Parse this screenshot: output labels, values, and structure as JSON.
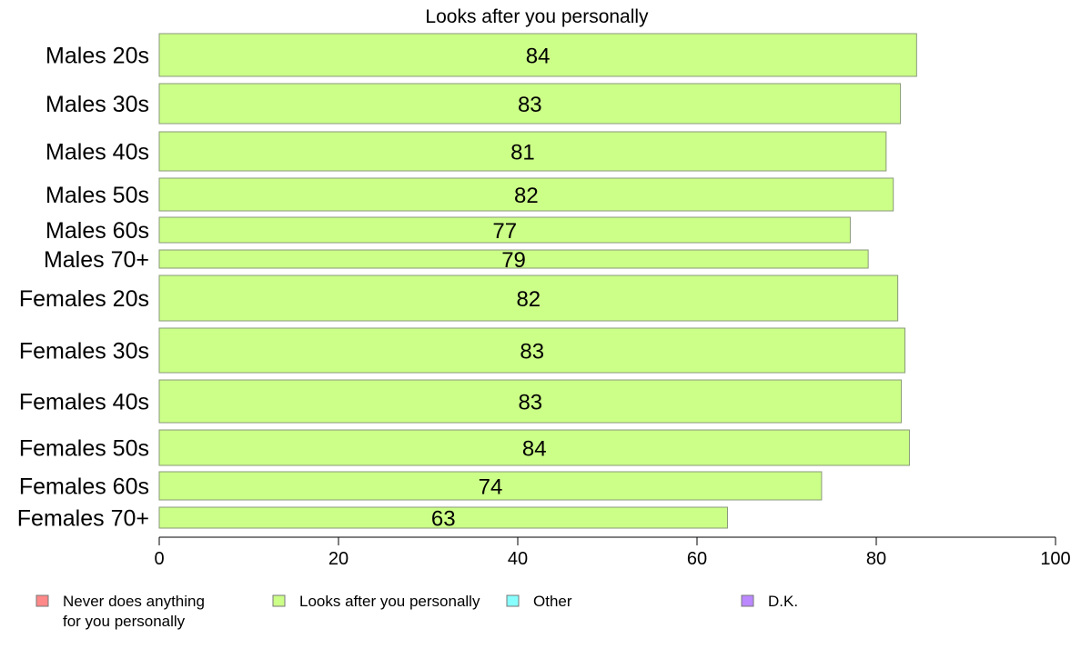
{
  "chart_data": {
    "type": "bar",
    "orientation": "horizontal",
    "title": "Looks after you personally",
    "categories": [
      "Males 20s",
      "Males 30s",
      "Males 40s",
      "Males 50s",
      "Males 60s",
      "Males 70+",
      "Females 20s",
      "Females 30s",
      "Females 40s",
      "Females 50s",
      "Females 60s",
      "Females 70+"
    ],
    "series": [
      {
        "name": "Looks after you personally",
        "color": "#ccff88",
        "values": [
          84.5,
          82.7,
          81.1,
          81.9,
          77.1,
          79.1,
          82.4,
          83.2,
          82.8,
          83.7,
          73.9,
          63.4
        ],
        "labels": [
          "84",
          "83",
          "81",
          "82",
          "77",
          "79",
          "82",
          "83",
          "83",
          "84",
          "74",
          "63"
        ]
      }
    ],
    "xlim": [
      0,
      100
    ],
    "xticks": [
      "0",
      "20",
      "40",
      "60",
      "80",
      "100"
    ],
    "grid": false,
    "legend": {
      "placement": "bottom",
      "items": [
        {
          "lines": [
            "Never does anything",
            "for you personally"
          ],
          "color": "#ff8888"
        },
        {
          "lines": [
            "Looks after you personally"
          ],
          "color": "#ccff88"
        },
        {
          "lines": [
            "Other"
          ],
          "color": "#88ffff"
        },
        {
          "lines": [
            "D.K."
          ],
          "color": "#bb88ff"
        }
      ]
    }
  }
}
